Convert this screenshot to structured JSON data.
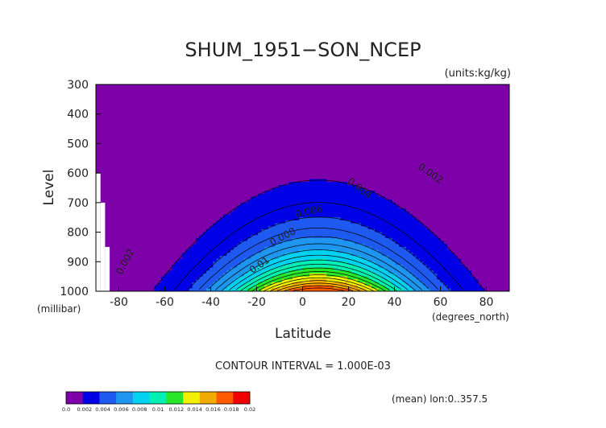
{
  "chart_data": {
    "type": "contour",
    "title": "SHUM_1951−SON_NCEP",
    "units": "(units:kg/kg)",
    "xlabel": "Latitude",
    "ylabel": "Level",
    "x_unit": "(degrees_north)",
    "y_unit": "(millibar)",
    "xlim": [
      -90,
      90
    ],
    "ylim": [
      300,
      1000
    ],
    "x_ticks": [
      "-80",
      "-60",
      "-40",
      "-20",
      "0",
      "20",
      "40",
      "60",
      "80"
    ],
    "y_ticks": [
      "300",
      "400",
      "500",
      "600",
      "700",
      "800",
      "900",
      "1000"
    ],
    "contour_interval_label": "CONTOUR INTERVAL = 1.000E-03",
    "note": "(mean) lon:0..357.5",
    "contour_labels": [
      "0.002",
      "0.002",
      "0.004",
      "0.006",
      "0.008",
      "0.01"
    ],
    "colorbar": {
      "ticks": [
        "0.0",
        "0.002",
        "0.004",
        "0.006",
        "0.008",
        "0.01",
        "0.012",
        "0.014",
        "0.016",
        "0.018",
        "0.02"
      ],
      "colors": [
        "#7d00a8",
        "#0000e6",
        "#1e5af0",
        "#1e96f0",
        "#00d2f0",
        "#00f0b4",
        "#28e628",
        "#f0f000",
        "#f0aa00",
        "#ff5a00",
        "#f00000"
      ]
    },
    "levels": [
      0.001,
      0.002,
      0.003,
      0.004,
      0.005,
      0.006,
      0.007,
      0.008,
      0.009,
      0.01,
      0.011,
      0.012,
      0.013,
      0.014,
      0.015,
      0.016,
      0.017,
      0.018
    ],
    "level_colors": [
      "#7d00a8",
      "#0000e6",
      "#0000e6",
      "#1e5af0",
      "#1e5af0",
      "#1e96f0",
      "#1e96f0",
      "#00d2f0",
      "#00d2f0",
      "#00f0b4",
      "#00f0b4",
      "#28e628",
      "#28e628",
      "#f0f000",
      "#f0f000",
      "#f0aa00",
      "#f0aa00",
      "#ff5a00",
      "#ff5a00",
      "#f00000"
    ],
    "missing_data": [
      {
        "lat_from": -90,
        "lat_to": -88,
        "level_from": 600,
        "level_to": 1000
      },
      {
        "lat_from": -88,
        "lat_to": -86,
        "level_from": 700,
        "level_to": 1000
      },
      {
        "lat_from": -86,
        "lat_to": -84,
        "level_from": 850,
        "level_to": 1000
      }
    ]
  }
}
